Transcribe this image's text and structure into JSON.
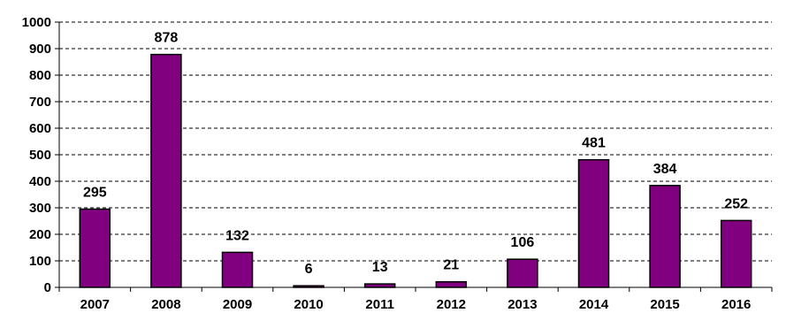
{
  "chart_data": {
    "type": "bar",
    "categories": [
      "2007",
      "2008",
      "2009",
      "2010",
      "2011",
      "2012",
      "2013",
      "2014",
      "2015",
      "2016"
    ],
    "values": [
      295,
      878,
      132,
      6,
      13,
      21,
      106,
      481,
      384,
      252
    ],
    "data_labels": [
      "295",
      "878",
      "132",
      "6",
      "13",
      "21",
      "106",
      "481",
      "384",
      "252"
    ],
    "title": "",
    "xlabel": "",
    "ylabel": "",
    "ylim": [
      0,
      1000
    ],
    "yticks": [
      "0",
      "100",
      "200",
      "300",
      "400",
      "500",
      "600",
      "700",
      "800",
      "900",
      "1000"
    ],
    "grid": "horizontal-dashed",
    "legend": "none",
    "colors": {
      "bar_fill": "#800080",
      "bar_stroke": "#000000",
      "grid": "#000000",
      "axis": "#000000"
    }
  }
}
